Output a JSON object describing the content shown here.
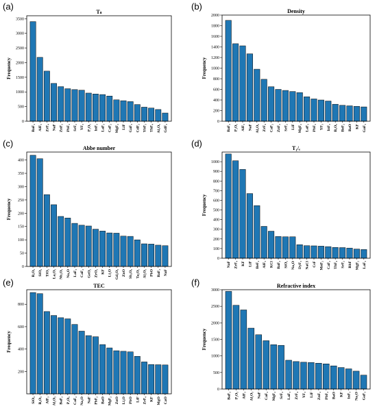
{
  "figure": {
    "bar_color": "#1f77b4",
    "bar_edge_color": "#000000"
  },
  "chart_data": [
    {
      "panel": "(a)",
      "type": "bar",
      "title": "Tₛ",
      "xlabel": "",
      "ylabel": "Frequency",
      "ylim": [
        0,
        3600
      ],
      "yticks": [
        0,
        500,
        1000,
        1500,
        2000,
        2500,
        3000,
        3500
      ],
      "grid": false,
      "categories": [
        "BaF₂",
        "AlF₃",
        "ZrF₄",
        "NaF",
        "ZnF₂",
        "PbF₂",
        "SrF₂",
        "YF₃",
        "P₂O₅",
        "InF₃",
        "LaF₃",
        "CaF₂",
        "MgF₂",
        "LiF",
        "GaF₃",
        "CdF₂",
        "YbF₃",
        "ThF₄",
        "Al₂O₃",
        "GdF₃"
      ],
      "values": [
        3400,
        2180,
        1710,
        1290,
        1180,
        1110,
        1080,
        1060,
        960,
        930,
        910,
        860,
        730,
        700,
        670,
        570,
        480,
        450,
        400,
        280
      ]
    },
    {
      "panel": "(b)",
      "type": "bar",
      "title": "Density",
      "xlabel": "",
      "ylabel": "Frequency",
      "ylim": [
        0,
        2000
      ],
      "yticks": [
        0,
        200,
        400,
        600,
        800,
        1000,
        1200,
        1400,
        1600,
        1800,
        2000
      ],
      "grid": false,
      "categories": [
        "BaF₂",
        "P₂O₅",
        "AlF₃",
        "NaF",
        "Al₂O₃",
        "ZrF₄",
        "CaF₂",
        "ZnF₂",
        "SrF₂",
        "LiF",
        "MgF₂",
        "LaF₃",
        "PbF₂",
        "YF₃",
        "InF₃",
        "B₂O₃",
        "BeF₂",
        "BaO",
        "KF",
        "GaF₃"
      ],
      "values": [
        1900,
        1460,
        1420,
        1270,
        980,
        790,
        650,
        600,
        580,
        560,
        540,
        460,
        420,
        400,
        380,
        320,
        300,
        290,
        280,
        270
      ]
    },
    {
      "panel": "(c)",
      "type": "bar",
      "title": "Abbe number",
      "xlabel": "",
      "ylabel": "Frequency",
      "ylim": [
        0,
        430
      ],
      "yticks": [
        0,
        50,
        100,
        150,
        200,
        250,
        300,
        350,
        400
      ],
      "grid": false,
      "categories": [
        "B₂O₃",
        "SiO₂",
        "TiO₂",
        "La₂O₃",
        "Nb₂O₅",
        "Na₂O",
        "LaF₃",
        "CaF₂",
        "GeO₂",
        "ZrO₂",
        "KF",
        "Li₂O",
        "Gd₂O₃",
        "ZnO",
        "Sb₂O₃",
        "Ta₂O₅",
        "Al₂O₃",
        "PbO",
        "BaF₂",
        "NaF"
      ],
      "values": [
        418,
        405,
        270,
        232,
        188,
        182,
        162,
        155,
        152,
        140,
        133,
        126,
        125,
        114,
        113,
        100,
        85,
        84,
        80,
        78
      ]
    },
    {
      "panel": "(d)",
      "type": "bar",
      "title": "T₁/ₑ",
      "xlabel": "",
      "ylabel": "Frequency",
      "ylim": [
        0,
        1100
      ],
      "yticks": [
        0,
        100,
        200,
        300,
        400,
        500,
        600,
        700,
        800,
        900,
        1000
      ],
      "grid": false,
      "categories": [
        "NaF",
        "ZrF₄",
        "KF",
        "LiF",
        "BeF₂",
        "AlF₃",
        "KCl",
        "BaF₂",
        "SiO₂",
        "Na₂O",
        "DyF₃",
        "NaCl",
        "CsF",
        "MnF₂",
        "CaF₂",
        "ThF₄",
        "SrF₂",
        "RbF",
        "MgF₂",
        "LaF₃"
      ],
      "values": [
        1080,
        1010,
        920,
        670,
        545,
        330,
        280,
        225,
        222,
        222,
        140,
        130,
        128,
        125,
        120,
        112,
        110,
        105,
        95,
        90
      ]
    },
    {
      "panel": "(e)",
      "type": "bar",
      "title": "TEC",
      "xlabel": "",
      "ylabel": "Frequency",
      "ylim": [
        0,
        930
      ],
      "yticks": [
        200,
        400,
        600,
        800
      ],
      "grid": false,
      "categories": [
        "SiO₂",
        "B₂O₃",
        "AlF₃",
        "Al₂O₃",
        "BaF₂",
        "P₂O₅",
        "CaF₂",
        "Na₂O",
        "NaF",
        "PbF₂",
        "BaO",
        "MgF₂",
        "ZnO",
        "Li₂O",
        "PbO",
        "LiF",
        "ZrF₄",
        "KF",
        "MgO",
        "CaO"
      ],
      "values": [
        905,
        895,
        735,
        700,
        680,
        670,
        620,
        560,
        520,
        510,
        440,
        410,
        385,
        380,
        375,
        335,
        285,
        262,
        260,
        258
      ]
    },
    {
      "panel": "(f)",
      "type": "bar",
      "title": "Refractive index",
      "xlabel": "",
      "ylabel": "Frequency",
      "ylim": [
        0,
        3000
      ],
      "yticks": [
        0,
        500,
        1000,
        1500,
        2000,
        2500,
        3000
      ],
      "grid": false,
      "categories": [
        "BaF₂",
        "P₂O₅",
        "AlF₃",
        "Al₂O₃",
        "NaF",
        "CaF₂",
        "MgF₂",
        "SrF₂",
        "LaF₃",
        "ZrF₄",
        "YF₃",
        "LiF",
        "ZnF₂",
        "PbF₂",
        "BaO",
        "KF",
        "InF₃",
        "Na₂O",
        "GaF₃"
      ],
      "values": [
        2950,
        2530,
        2390,
        1840,
        1640,
        1460,
        1340,
        1320,
        870,
        830,
        810,
        800,
        780,
        760,
        700,
        650,
        610,
        540,
        420
      ]
    }
  ]
}
